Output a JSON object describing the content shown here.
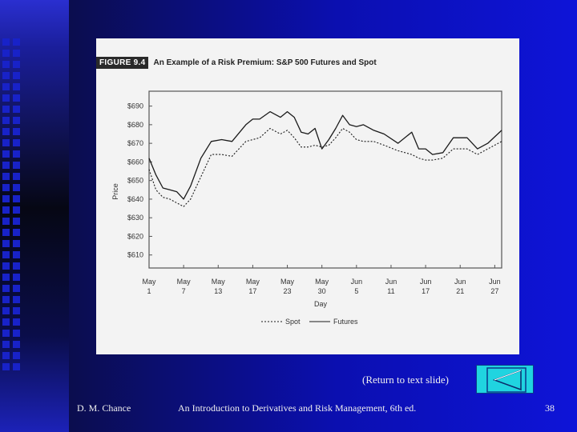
{
  "slide": {
    "return_label": "(Return to text slide)",
    "footer_left": "D. M. Chance",
    "footer_center": "An Introduction to Derivatives and Risk Management, 6th ed.",
    "footer_right": "38",
    "colors": {
      "button_fill": "#20d4e0",
      "background": "#0e14d8"
    }
  },
  "figure": {
    "tag": "FIGURE 9.4",
    "title": "An Example of a Risk Premium: S&P 500 Futures and Spot"
  },
  "chart_data": {
    "type": "line",
    "title": "An Example of a Risk Premium: S&P 500 Futures and Spot",
    "xlabel": "Day",
    "ylabel": "Price",
    "x_ticks": [
      "May 1",
      "May 7",
      "May 13",
      "May 17",
      "May 23",
      "May 30",
      "Jun 5",
      "Jun 11",
      "Jun 17",
      "Jun 21",
      "Jun 27"
    ],
    "y_ticks": [
      "$610",
      "$620",
      "$630",
      "$640",
      "$650",
      "$660",
      "$670",
      "$680",
      "$690"
    ],
    "ylim": [
      603,
      698
    ],
    "xlim": [
      0,
      10.2
    ],
    "legend": {
      "placement": "bottom-center",
      "entries": [
        "Spot",
        "Futures"
      ]
    },
    "series": [
      {
        "name": "Futures",
        "style": "solid",
        "x": [
          0,
          0.2,
          0.4,
          0.6,
          0.8,
          1.0,
          1.2,
          1.5,
          1.8,
          2.1,
          2.4,
          2.8,
          3.0,
          3.2,
          3.5,
          3.8,
          4.0,
          4.2,
          4.4,
          4.6,
          4.8,
          5.0,
          5.2,
          5.4,
          5.6,
          5.8,
          6.0,
          6.2,
          6.5,
          6.8,
          7.2,
          7.6,
          7.8,
          8.0,
          8.2,
          8.5,
          8.8,
          9.2,
          9.5,
          9.8,
          10.2
        ],
        "y": [
          662,
          653,
          646,
          645,
          644,
          640,
          647,
          662,
          671,
          672,
          671,
          680,
          683,
          683,
          687,
          684,
          687,
          684,
          676,
          675,
          678,
          667,
          672,
          678,
          685,
          680,
          679,
          680,
          677,
          675,
          670,
          676,
          667,
          667,
          664,
          665,
          673,
          673,
          667,
          670,
          677
        ]
      },
      {
        "name": "Spot",
        "style": "dashed",
        "x": [
          0,
          0.2,
          0.4,
          0.6,
          0.8,
          1.0,
          1.2,
          1.5,
          1.8,
          2.1,
          2.4,
          2.8,
          3.0,
          3.2,
          3.5,
          3.8,
          4.0,
          4.2,
          4.4,
          4.6,
          4.8,
          5.0,
          5.2,
          5.4,
          5.6,
          5.8,
          6.0,
          6.2,
          6.5,
          6.8,
          7.2,
          7.6,
          7.8,
          8.0,
          8.2,
          8.5,
          8.8,
          9.2,
          9.5,
          9.8,
          10.2
        ],
        "y": [
          656,
          645,
          641,
          640,
          638,
          636,
          640,
          652,
          664,
          664,
          663,
          671,
          672,
          673,
          678,
          675,
          677,
          673,
          668,
          668,
          669,
          668,
          669,
          673,
          678,
          676,
          672,
          671,
          671,
          669,
          666,
          664,
          662,
          661,
          661,
          662,
          667,
          667,
          664,
          667,
          671
        ]
      }
    ]
  }
}
